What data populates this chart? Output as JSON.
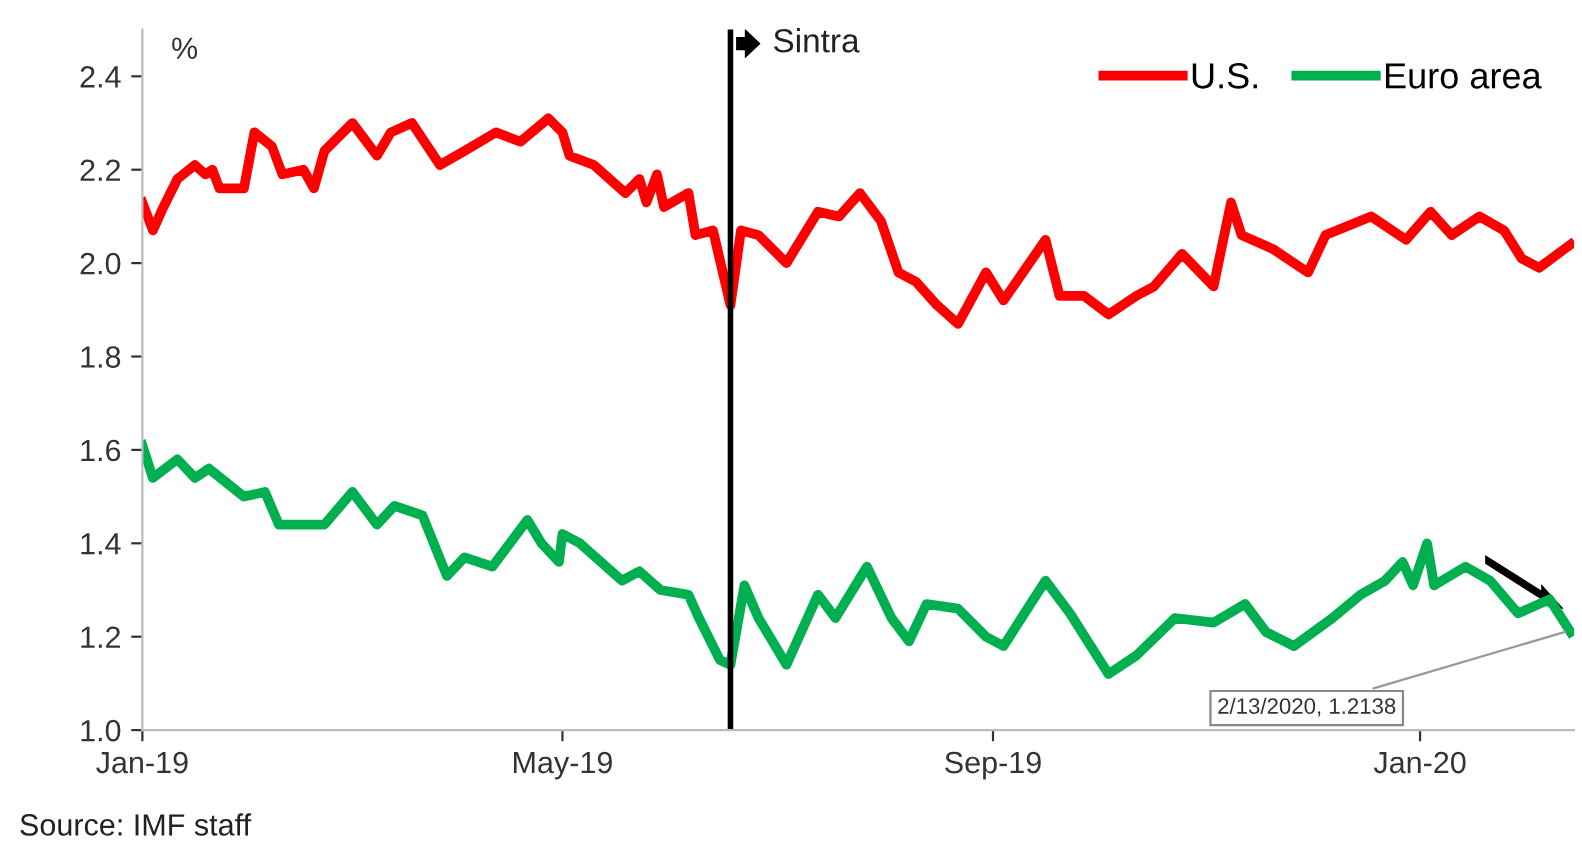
{
  "chart_data": {
    "type": "line",
    "ylabel": "%",
    "xlim": [
      "2019-01-01",
      "2020-02-14"
    ],
    "ylim": [
      1.0,
      2.5
    ],
    "yticks": [
      {
        "value": 1.0,
        "label": "1.0"
      },
      {
        "value": 1.2,
        "label": "1.2"
      },
      {
        "value": 1.4,
        "label": "1.4"
      },
      {
        "value": 1.6,
        "label": "1.6"
      },
      {
        "value": 1.8,
        "label": "1.8"
      },
      {
        "value": 2.0,
        "label": "2.0"
      },
      {
        "value": 2.2,
        "label": "2.2"
      },
      {
        "value": 2.4,
        "label": "2.4"
      }
    ],
    "xticks": [
      {
        "value": "2019-01-01",
        "label": "Jan-19"
      },
      {
        "value": "2019-05-01",
        "label": "May-19"
      },
      {
        "value": "2019-09-01",
        "label": "Sep-19"
      },
      {
        "value": "2020-01-01",
        "label": "Jan-20"
      }
    ],
    "grid": false,
    "legend": "top right",
    "marker": "none",
    "line_style": "solid",
    "series": [
      {
        "name": "U.S.",
        "color": "#ff0000",
        "x": [
          "2019-01-01",
          "2019-01-04",
          "2019-01-07",
          "2019-01-11",
          "2019-01-16",
          "2019-01-19",
          "2019-01-21",
          "2019-01-23",
          "2019-01-30",
          "2019-02-02",
          "2019-02-07",
          "2019-02-10",
          "2019-02-16",
          "2019-02-19",
          "2019-02-22",
          "2019-03-02",
          "2019-03-09",
          "2019-03-13",
          "2019-03-19",
          "2019-03-27",
          "2019-04-03",
          "2019-04-12",
          "2019-04-19",
          "2019-04-27",
          "2019-05-01",
          "2019-05-03",
          "2019-05-10",
          "2019-05-19",
          "2019-05-23",
          "2019-05-25",
          "2019-05-28",
          "2019-05-30",
          "2019-06-06",
          "2019-06-08",
          "2019-06-13",
          "2019-06-18",
          "2019-06-21",
          "2019-06-26",
          "2019-07-04",
          "2019-07-13",
          "2019-07-19",
          "2019-07-25",
          "2019-07-31",
          "2019-08-05",
          "2019-08-10",
          "2019-08-16",
          "2019-08-22",
          "2019-08-30",
          "2019-09-04",
          "2019-09-16",
          "2019-09-20",
          "2019-09-27",
          "2019-10-04",
          "2019-10-12",
          "2019-10-17",
          "2019-10-25",
          "2019-11-03",
          "2019-11-08",
          "2019-11-11",
          "2019-11-20",
          "2019-11-30",
          "2019-12-05",
          "2019-12-18",
          "2019-12-28",
          "2020-01-04",
          "2020-01-10",
          "2020-01-18",
          "2020-01-25",
          "2020-01-30",
          "2020-02-04",
          "2020-02-13"
        ],
        "values": [
          2.13,
          2.07,
          2.12,
          2.18,
          2.21,
          2.19,
          2.2,
          2.16,
          2.16,
          2.28,
          2.25,
          2.19,
          2.2,
          2.16,
          2.24,
          2.3,
          2.23,
          2.28,
          2.3,
          2.21,
          2.24,
          2.28,
          2.26,
          2.31,
          2.28,
          2.23,
          2.21,
          2.15,
          2.18,
          2.13,
          2.19,
          2.12,
          2.15,
          2.06,
          2.07,
          1.91,
          2.07,
          2.06,
          2.0,
          2.11,
          2.1,
          2.15,
          2.09,
          1.98,
          1.96,
          1.91,
          1.87,
          1.98,
          1.92,
          2.05,
          1.93,
          1.93,
          1.89,
          1.93,
          1.95,
          2.02,
          1.95,
          2.13,
          2.06,
          2.03,
          1.98,
          2.06,
          2.1,
          2.05,
          2.11,
          2.06,
          2.1,
          2.07,
          2.01,
          1.99,
          2.04
        ]
      },
      {
        "name": "Euro area",
        "color": "#00b050",
        "x": [
          "2019-01-01",
          "2019-01-04",
          "2019-01-11",
          "2019-01-16",
          "2019-01-20",
          "2019-01-30",
          "2019-02-05",
          "2019-02-09",
          "2019-02-22",
          "2019-03-02",
          "2019-03-09",
          "2019-03-14",
          "2019-03-22",
          "2019-03-29",
          "2019-04-03",
          "2019-04-11",
          "2019-04-21",
          "2019-04-25",
          "2019-04-30",
          "2019-05-01",
          "2019-05-06",
          "2019-05-18",
          "2019-05-23",
          "2019-05-29",
          "2019-06-06",
          "2019-06-09",
          "2019-06-15",
          "2019-06-18",
          "2019-06-22",
          "2019-06-26",
          "2019-07-04",
          "2019-07-13",
          "2019-07-18",
          "2019-07-27",
          "2019-08-03",
          "2019-08-08",
          "2019-08-13",
          "2019-08-22",
          "2019-08-30",
          "2019-09-04",
          "2019-09-16",
          "2019-09-23",
          "2019-10-04",
          "2019-10-12",
          "2019-10-23",
          "2019-11-03",
          "2019-11-12",
          "2019-11-18",
          "2019-11-26",
          "2019-12-07",
          "2019-12-15",
          "2019-12-22",
          "2019-12-27",
          "2019-12-30",
          "2020-01-03",
          "2020-01-05",
          "2020-01-14",
          "2020-01-21",
          "2020-01-29",
          "2020-02-07",
          "2020-02-13"
        ],
        "values": [
          1.61,
          1.54,
          1.58,
          1.54,
          1.56,
          1.5,
          1.51,
          1.44,
          1.44,
          1.51,
          1.44,
          1.48,
          1.46,
          1.33,
          1.37,
          1.35,
          1.45,
          1.4,
          1.36,
          1.42,
          1.4,
          1.32,
          1.34,
          1.3,
          1.29,
          1.24,
          1.15,
          1.14,
          1.31,
          1.24,
          1.14,
          1.29,
          1.24,
          1.35,
          1.24,
          1.19,
          1.27,
          1.26,
          1.2,
          1.18,
          1.32,
          1.25,
          1.12,
          1.16,
          1.24,
          1.23,
          1.27,
          1.21,
          1.18,
          1.24,
          1.29,
          1.32,
          1.36,
          1.31,
          1.4,
          1.31,
          1.35,
          1.32,
          1.25,
          1.28,
          1.21
        ]
      }
    ],
    "ref_lines": [
      {
        "axis": "x",
        "value": "2019-06-18",
        "label": "Sintra",
        "color": "#000000",
        "line_style": "solid"
      }
    ],
    "annotations": [
      {
        "text": "2/13/2020, 1.2138",
        "x": "2020-02-13",
        "y": 1.2138
      },
      "Source: IMF staff"
    ]
  }
}
